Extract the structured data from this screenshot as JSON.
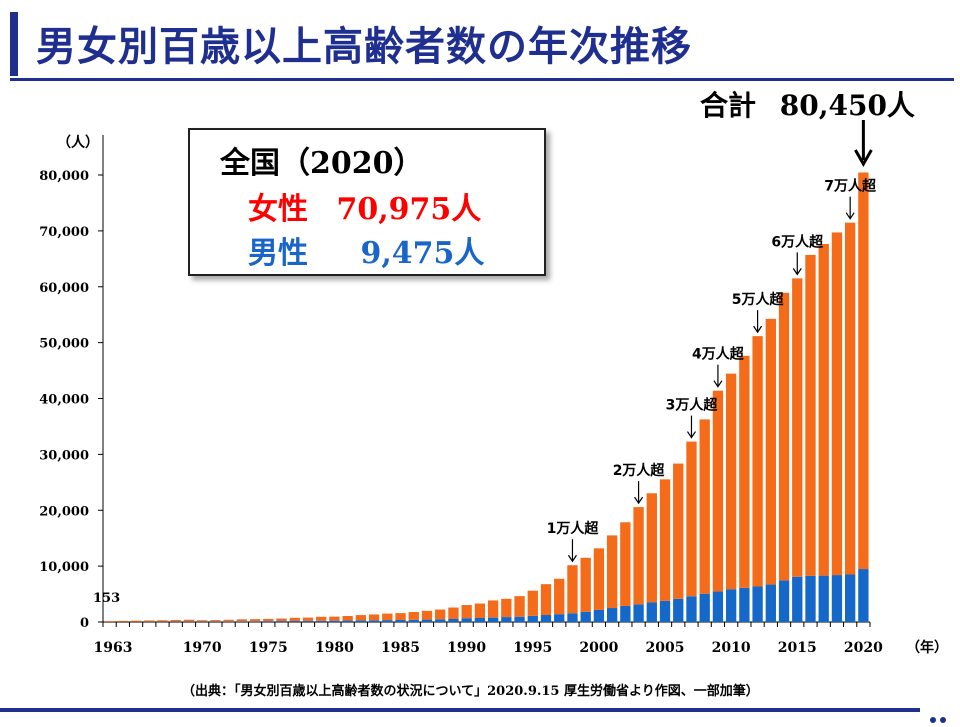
{
  "title": "男女別百歳以上高齢者数の年次推移",
  "total_label": "合計",
  "total_value": "80,450人",
  "infobox": {
    "region": "全国（",
    "year": "2020",
    "region_close": "）",
    "female_label": "女性",
    "female_value": "70,975人",
    "male_label": "男性",
    "male_value": "9,475人"
  },
  "source": "（出典：「男女別百歳以上高齢者数の状況について」2020.9.15  厚生労働省より作図、一部加筆）",
  "colors": {
    "female": "#f46b1a",
    "male": "#1668c8",
    "title": "#1f2f8f"
  },
  "chart_data": {
    "type": "bar",
    "stacked": true,
    "y_unit_label": "（人）",
    "x_unit_label": "（年）",
    "ylim": [
      0,
      80000
    ],
    "yticks": [
      "0",
      "10,000",
      "20,000",
      "30,000",
      "40,000",
      "50,000",
      "60,000",
      "70,000",
      "80,000"
    ],
    "xtick_labels": [
      "1963",
      "1970",
      "1975",
      "1980",
      "1985",
      "1990",
      "1995",
      "2000",
      "2005",
      "2010",
      "2015",
      "2020"
    ],
    "first_value_label": "153",
    "x": [
      1963,
      1964,
      1965,
      1966,
      1967,
      1968,
      1969,
      1970,
      1971,
      1972,
      1973,
      1974,
      1975,
      1976,
      1977,
      1978,
      1979,
      1980,
      1981,
      1982,
      1983,
      1984,
      1985,
      1986,
      1987,
      1988,
      1989,
      1990,
      1991,
      1992,
      1993,
      1994,
      1995,
      1996,
      1997,
      1998,
      1999,
      2000,
      2001,
      2002,
      2003,
      2004,
      2005,
      2006,
      2007,
      2008,
      2009,
      2010,
      2011,
      2012,
      2013,
      2014,
      2015,
      2016,
      2017,
      2018,
      2019,
      2020
    ],
    "series": [
      {
        "name": "男性",
        "values": [
          20,
          30,
          40,
          50,
          60,
          80,
          90,
          90,
          100,
          110,
          120,
          130,
          160,
          170,
          180,
          190,
          210,
          240,
          260,
          280,
          310,
          340,
          360,
          390,
          430,
          480,
          540,
          680,
          720,
          780,
          880,
          940,
          1100,
          1250,
          1400,
          1570,
          1820,
          2160,
          2500,
          2880,
          3150,
          3500,
          3780,
          4150,
          4610,
          5060,
          5450,
          5870,
          6110,
          6360,
          6700,
          7460,
          8100,
          8250,
          8300,
          8400,
          8500,
          9475
        ]
      },
      {
        "name": "女性",
        "values": [
          133,
          170,
          200,
          230,
          250,
          270,
          320,
          220,
          240,
          290,
          360,
          380,
          400,
          450,
          570,
          600,
          720,
          720,
          810,
          960,
          1040,
          1160,
          1230,
          1400,
          1570,
          1750,
          2050,
          2350,
          2580,
          3080,
          3270,
          3690,
          4500,
          5520,
          6340,
          8590,
          9670,
          11020,
          13000,
          14970,
          17410,
          19540,
          21750,
          24200,
          27680,
          31200,
          35950,
          38580,
          41530,
          44800,
          47560,
          51460,
          53400,
          57440,
          59350,
          61320,
          62970,
          70975
        ]
      }
    ],
    "annotations": [
      {
        "label": "1万人超",
        "year": 1998
      },
      {
        "label": "2万人超",
        "year": 2003
      },
      {
        "label": "3万人超",
        "year": 2007
      },
      {
        "label": "4万人超",
        "year": 2009
      },
      {
        "label": "5万人超",
        "year": 2012
      },
      {
        "label": "6万人超",
        "year": 2015
      },
      {
        "label": "7万人超",
        "year": 2019
      }
    ]
  }
}
